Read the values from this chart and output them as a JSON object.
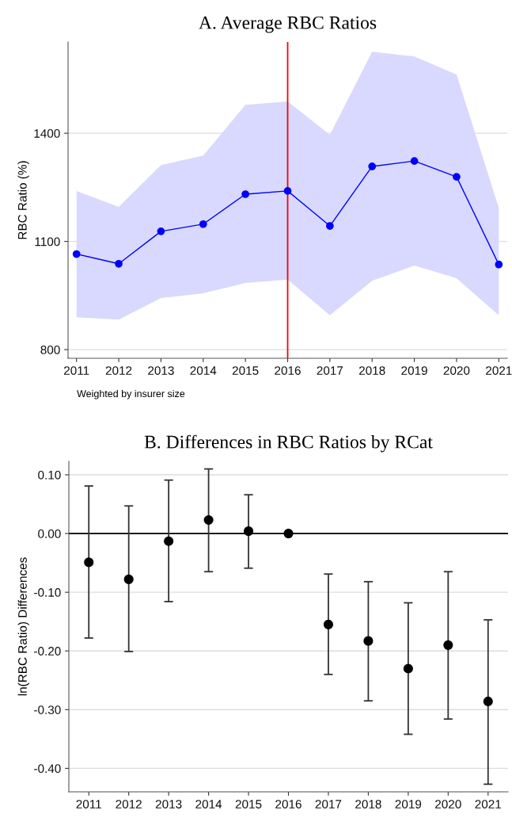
{
  "chart_data": [
    {
      "type": "line",
      "title": "A. Average RBC Ratios",
      "ylabel": "RBC Ratio (%)",
      "x": [
        2011,
        2012,
        2013,
        2014,
        2015,
        2016,
        2017,
        2018,
        2019,
        2020,
        2021
      ],
      "series": [
        {
          "color": "#0000ff",
          "values": [
            1065,
            1038,
            1128,
            1148,
            1231,
            1240,
            1143,
            1308,
            1323,
            1279,
            1036
          ],
          "lower": [
            890,
            883,
            943,
            956,
            985,
            994,
            895,
            991,
            1033,
            998,
            895
          ],
          "upper": [
            1240,
            1196,
            1312,
            1338,
            1479,
            1488,
            1396,
            1626,
            1613,
            1563,
            1193
          ]
        }
      ],
      "xlim": [
        2010.8,
        2021.2
      ],
      "xticks": [
        2011,
        2012,
        2013,
        2014,
        2015,
        2016,
        2017,
        2018,
        2019,
        2020,
        2021
      ],
      "ylim": [
        776,
        1653
      ],
      "yticks": [
        800,
        1100,
        1400
      ],
      "ref_lines": [
        {
          "axis": "x",
          "value": 2016,
          "color": "#ff0000"
        }
      ],
      "annotations": [
        "Weighted by insurer size"
      ],
      "grid": "y",
      "marker": "circle",
      "line_style": "solid",
      "legend": false
    },
    {
      "type": "scatter",
      "title": "B. Differences in RBC Ratios by RCat",
      "ylabel": "ln(RBC Ratio) Differences",
      "x": [
        2011,
        2012,
        2013,
        2014,
        2015,
        2016,
        2017,
        2018,
        2019,
        2020,
        2021
      ],
      "series": [
        {
          "color": "#000000",
          "values": [
            -0.049,
            -0.078,
            -0.013,
            0.023,
            0.004,
            0,
            -0.155,
            -0.183,
            -0.23,
            -0.19,
            -0.286
          ],
          "errors": [
            [
              -0.178,
              0.081
            ],
            [
              -0.201,
              0.047
            ],
            [
              -0.116,
              0.091
            ],
            [
              -0.065,
              0.11
            ],
            [
              -0.059,
              0.066
            ],
            null,
            [
              -0.24,
              -0.069
            ],
            [
              -0.285,
              -0.082
            ],
            [
              -0.342,
              -0.118
            ],
            [
              -0.316,
              -0.065
            ],
            [
              -0.427,
              -0.147
            ]
          ]
        }
      ],
      "xlim": [
        2010.5,
        2021.5
      ],
      "xticks": [
        2011,
        2012,
        2013,
        2014,
        2015,
        2016,
        2017,
        2018,
        2019,
        2020,
        2021
      ],
      "ylim": [
        -0.44,
        0.123
      ],
      "yticks": [
        {
          "value": 0.1,
          "label": "0.10"
        },
        {
          "value": 0,
          "label": "0.00"
        },
        {
          "value": -0.1,
          "label": "-0.10"
        },
        {
          "value": -0.2,
          "label": "-0.20"
        },
        {
          "value": -0.3,
          "label": "-0.30"
        },
        {
          "value": -0.4,
          "label": "-0.40"
        }
      ],
      "ref_lines": [
        {
          "axis": "y",
          "value": 0,
          "color": "#000000"
        }
      ],
      "grid": "y",
      "marker": "circle",
      "legend": false
    }
  ]
}
